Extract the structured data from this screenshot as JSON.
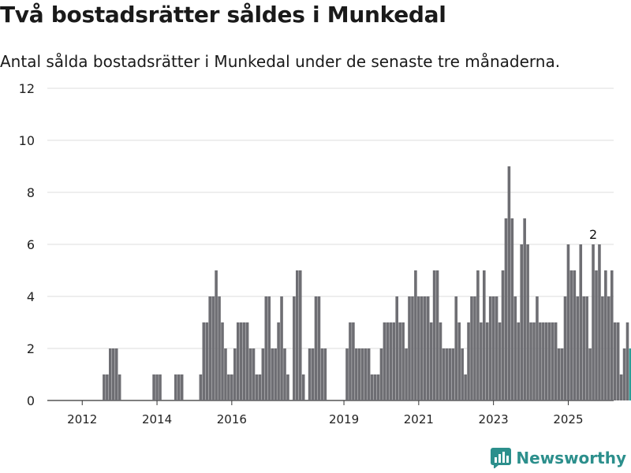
{
  "header": {
    "title": "Två bostadsrätter såldes i Munkedal",
    "subtitle": "Antal sålda bostadsrätter i Munkedal under de senaste tre månaderna."
  },
  "brand": {
    "name": "Newsworthy",
    "color": "#2c8f8c",
    "icon": "bar-chart-logo-icon"
  },
  "colors": {
    "bar": "#6e6e73",
    "highlight": "#2a9d96",
    "grid": "#dddddd"
  },
  "chart_data": {
    "type": "bar",
    "xlabel": "",
    "ylabel": "",
    "ylim": [
      0,
      12
    ],
    "yticks": [
      "0",
      "2",
      "4",
      "6",
      "8",
      "10",
      "12"
    ],
    "xticks": [
      "2012",
      "2014",
      "2016",
      "2019",
      "2021",
      "2023",
      "2025"
    ],
    "grid": true,
    "x_start": "2011-10",
    "x_end": "2025-09",
    "series": [
      {
        "values": [
          0,
          0,
          0,
          0,
          0,
          0,
          0,
          0,
          0,
          0,
          1,
          1,
          2,
          2,
          2,
          1,
          0,
          0,
          0,
          0,
          0,
          0,
          0,
          0,
          0,
          0,
          1,
          1,
          1,
          0,
          0,
          0,
          0,
          1,
          1,
          1,
          0,
          0,
          0,
          0,
          0,
          1,
          3,
          3,
          4,
          4,
          5,
          4,
          3,
          2,
          1,
          1,
          2,
          3,
          3,
          3,
          3,
          2,
          2,
          1,
          1,
          2,
          4,
          4,
          2,
          2,
          3,
          4,
          2,
          1,
          0,
          4,
          5,
          5,
          1,
          0,
          2,
          2,
          4,
          4,
          2,
          2,
          0,
          0,
          0,
          0,
          0,
          0,
          2,
          3,
          3,
          2,
          2,
          2,
          2,
          2,
          1,
          1,
          1,
          2,
          3,
          3,
          3,
          3,
          4,
          3,
          3,
          2,
          4,
          4,
          5,
          4,
          4,
          4,
          4,
          3,
          5,
          5,
          3,
          2,
          2,
          2,
          2,
          4,
          3,
          2,
          1,
          3,
          4,
          4,
          5,
          3,
          5,
          3,
          4,
          4,
          4,
          3,
          5,
          7,
          9,
          7,
          4,
          3,
          6,
          7,
          6,
          3,
          3,
          4,
          3,
          3,
          3,
          3,
          3,
          3,
          2,
          2,
          4,
          6,
          5,
          5,
          4,
          6,
          4,
          4,
          2,
          6,
          5,
          6,
          4,
          5,
          4,
          5,
          3,
          3,
          1,
          2,
          3,
          2
        ]
      }
    ],
    "highlight_last": 1,
    "data_labels": [
      {
        "index": 167,
        "text": "2"
      }
    ]
  }
}
